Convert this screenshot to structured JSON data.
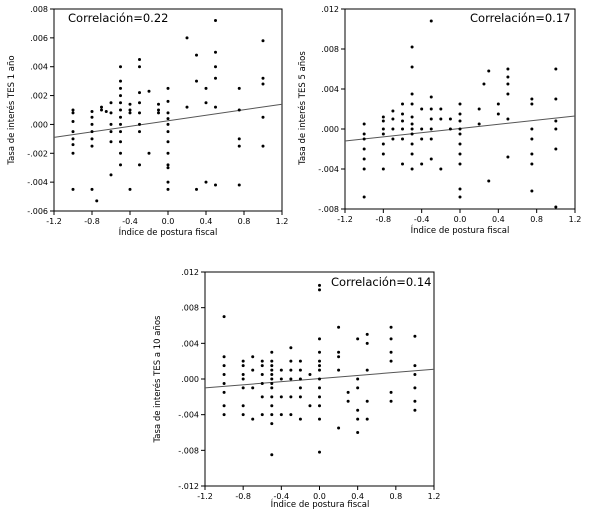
{
  "chart_data": [
    {
      "type": "scatter",
      "annotation": "Correlación=0.22",
      "xlabel": "Índice de postura fiscal",
      "ylabel": "Tasa de interés TES 1 año",
      "xlim": [
        -1.2,
        1.2
      ],
      "ylim": [
        -0.006,
        0.008
      ],
      "xticks": [
        "-1.2",
        "-0.8",
        "-0.4",
        "0.0",
        "0.4",
        "0.8",
        "1.2"
      ],
      "yticks": [
        ".008",
        ".006",
        ".004",
        ".002",
        ".000",
        "-.002",
        "-.004",
        "-.006"
      ],
      "fit_line": {
        "x": [
          -1.2,
          1.2
        ],
        "y": [
          -0.0009,
          0.0014
        ]
      },
      "grid": false,
      "points": [
        [
          -1.0,
          -0.0045
        ],
        [
          -1.0,
          -0.002
        ],
        [
          -1.0,
          -0.0014
        ],
        [
          -1.0,
          -0.001
        ],
        [
          -1.0,
          -0.0005
        ],
        [
          -1.0,
          0.0002
        ],
        [
          -1.0,
          0.0008
        ],
        [
          -1.0,
          0.001
        ],
        [
          -0.8,
          -0.0045
        ],
        [
          -0.8,
          -0.0015
        ],
        [
          -0.8,
          -0.001
        ],
        [
          -0.8,
          -0.0005
        ],
        [
          -0.8,
          0.0
        ],
        [
          -0.8,
          0.0005
        ],
        [
          -0.8,
          0.0009
        ],
        [
          -0.75,
          -0.0053
        ],
        [
          -0.7,
          0.001
        ],
        [
          -0.7,
          0.0012
        ],
        [
          -0.65,
          0.0009
        ],
        [
          -0.6,
          -0.0035
        ],
        [
          -0.6,
          -0.0012
        ],
        [
          -0.6,
          -0.0005
        ],
        [
          -0.6,
          0.0
        ],
        [
          -0.6,
          0.0008
        ],
        [
          -0.6,
          0.0015
        ],
        [
          -0.5,
          -0.0028
        ],
        [
          -0.5,
          -0.002
        ],
        [
          -0.5,
          -0.0012
        ],
        [
          -0.5,
          -0.0005
        ],
        [
          -0.5,
          0.0
        ],
        [
          -0.5,
          0.0005
        ],
        [
          -0.5,
          0.001
        ],
        [
          -0.5,
          0.0015
        ],
        [
          -0.5,
          0.002
        ],
        [
          -0.5,
          0.0025
        ],
        [
          -0.5,
          0.003
        ],
        [
          -0.5,
          0.004
        ],
        [
          -0.4,
          -0.0045
        ],
        [
          -0.4,
          0.0008
        ],
        [
          -0.4,
          0.001
        ],
        [
          -0.4,
          0.0014
        ],
        [
          -0.3,
          -0.0028
        ],
        [
          -0.3,
          -0.0005
        ],
        [
          -0.3,
          0.0
        ],
        [
          -0.3,
          0.0008
        ],
        [
          -0.3,
          0.0015
        ],
        [
          -0.3,
          0.0022
        ],
        [
          -0.3,
          0.004
        ],
        [
          -0.3,
          0.0045
        ],
        [
          -0.2,
          -0.002
        ],
        [
          -0.2,
          0.0023
        ],
        [
          -0.1,
          0.0008
        ],
        [
          -0.1,
          0.001
        ],
        [
          -0.1,
          0.0014
        ],
        [
          0.0,
          -0.0045
        ],
        [
          0.0,
          -0.004
        ],
        [
          0.0,
          -0.003
        ],
        [
          0.0,
          -0.0028
        ],
        [
          0.0,
          -0.002
        ],
        [
          0.0,
          -0.0012
        ],
        [
          0.0,
          -0.0005
        ],
        [
          0.0,
          0.0
        ],
        [
          0.0,
          0.0004
        ],
        [
          0.0,
          0.0008
        ],
        [
          0.0,
          0.0016
        ],
        [
          0.0,
          0.0025
        ],
        [
          0.2,
          0.0012
        ],
        [
          0.2,
          0.006
        ],
        [
          0.3,
          -0.0045
        ],
        [
          0.3,
          0.003
        ],
        [
          0.3,
          0.0048
        ],
        [
          0.4,
          -0.004
        ],
        [
          0.4,
          0.0015
        ],
        [
          0.4,
          0.0025
        ],
        [
          0.5,
          -0.0042
        ],
        [
          0.5,
          0.0012
        ],
        [
          0.5,
          0.0032
        ],
        [
          0.5,
          0.004
        ],
        [
          0.5,
          0.005
        ],
        [
          0.5,
          0.0072
        ],
        [
          0.75,
          -0.0042
        ],
        [
          0.75,
          -0.0015
        ],
        [
          0.75,
          -0.001
        ],
        [
          0.75,
          0.001
        ],
        [
          0.75,
          0.0025
        ],
        [
          1.0,
          -0.0015
        ],
        [
          1.0,
          0.0005
        ],
        [
          1.0,
          0.0028
        ],
        [
          1.0,
          0.0032
        ],
        [
          1.0,
          0.0058
        ]
      ]
    },
    {
      "type": "scatter",
      "annotation": "Correlación=0.17",
      "xlabel": "Índice de postura fiscal",
      "ylabel": "Tasa de interés TES 5 años",
      "xlim": [
        -1.2,
        1.2
      ],
      "ylim": [
        -0.008,
        0.012
      ],
      "xticks": [
        "-1.2",
        "-0.8",
        "-0.4",
        "0.0",
        "0.4",
        "0.8",
        "1.2"
      ],
      "yticks": [
        ".012",
        ".008",
        ".004",
        ".000",
        "-.004",
        "-.008"
      ],
      "fit_line": {
        "x": [
          -1.2,
          1.2
        ],
        "y": [
          -0.0012,
          0.0013
        ]
      },
      "grid": false,
      "points": [
        [
          -1.0,
          -0.0068
        ],
        [
          -1.0,
          -0.004
        ],
        [
          -1.0,
          -0.003
        ],
        [
          -1.0,
          -0.002
        ],
        [
          -1.0,
          -0.001
        ],
        [
          -1.0,
          -0.0005
        ],
        [
          -1.0,
          0.0005
        ],
        [
          -0.8,
          -0.004
        ],
        [
          -0.8,
          -0.0025
        ],
        [
          -0.8,
          -0.0015
        ],
        [
          -0.8,
          -0.0005
        ],
        [
          -0.8,
          0.0
        ],
        [
          -0.8,
          0.0008
        ],
        [
          -0.8,
          0.0012
        ],
        [
          -0.7,
          -0.001
        ],
        [
          -0.7,
          0.0
        ],
        [
          -0.7,
          0.001
        ],
        [
          -0.7,
          0.0018
        ],
        [
          -0.6,
          -0.0035
        ],
        [
          -0.6,
          -0.001
        ],
        [
          -0.6,
          0.0
        ],
        [
          -0.6,
          0.0008
        ],
        [
          -0.6,
          0.0015
        ],
        [
          -0.6,
          0.0025
        ],
        [
          -0.5,
          -0.004
        ],
        [
          -0.5,
          -0.0025
        ],
        [
          -0.5,
          -0.0015
        ],
        [
          -0.5,
          -0.0005
        ],
        [
          -0.5,
          0.0
        ],
        [
          -0.5,
          0.0005
        ],
        [
          -0.5,
          0.0012
        ],
        [
          -0.5,
          0.0025
        ],
        [
          -0.5,
          0.0035
        ],
        [
          -0.5,
          0.0062
        ],
        [
          -0.5,
          0.0082
        ],
        [
          -0.4,
          -0.0035
        ],
        [
          -0.4,
          -0.001
        ],
        [
          -0.4,
          0.0
        ],
        [
          -0.4,
          0.002
        ],
        [
          -0.3,
          -0.003
        ],
        [
          -0.3,
          -0.001
        ],
        [
          -0.3,
          0.0
        ],
        [
          -0.3,
          0.001
        ],
        [
          -0.3,
          0.002
        ],
        [
          -0.3,
          0.0032
        ],
        [
          -0.3,
          0.0108
        ],
        [
          -0.2,
          -0.004
        ],
        [
          -0.2,
          0.001
        ],
        [
          -0.2,
          0.002
        ],
        [
          -0.1,
          0.0
        ],
        [
          -0.1,
          0.001
        ],
        [
          0.0,
          -0.0068
        ],
        [
          0.0,
          -0.006
        ],
        [
          0.0,
          -0.0035
        ],
        [
          0.0,
          -0.0025
        ],
        [
          0.0,
          -0.0015
        ],
        [
          0.0,
          -0.0005
        ],
        [
          0.0,
          0.0
        ],
        [
          0.0,
          0.0008
        ],
        [
          0.0,
          0.0015
        ],
        [
          0.0,
          0.0025
        ],
        [
          0.2,
          0.0005
        ],
        [
          0.2,
          0.002
        ],
        [
          0.25,
          0.0045
        ],
        [
          0.3,
          -0.0052
        ],
        [
          0.3,
          0.0058
        ],
        [
          0.4,
          0.0015
        ],
        [
          0.4,
          0.0025
        ],
        [
          0.5,
          -0.0028
        ],
        [
          0.5,
          0.001
        ],
        [
          0.5,
          0.0035
        ],
        [
          0.5,
          0.0045
        ],
        [
          0.5,
          0.0052
        ],
        [
          0.5,
          0.006
        ],
        [
          0.75,
          -0.0062
        ],
        [
          0.75,
          -0.0035
        ],
        [
          0.75,
          -0.0025
        ],
        [
          0.75,
          -0.001
        ],
        [
          0.75,
          0.0
        ],
        [
          0.75,
          0.0025
        ],
        [
          0.75,
          0.003
        ],
        [
          1.0,
          -0.0078
        ],
        [
          1.0,
          -0.002
        ],
        [
          1.0,
          0.0
        ],
        [
          1.0,
          0.0008
        ],
        [
          1.0,
          0.003
        ],
        [
          1.0,
          0.006
        ]
      ]
    },
    {
      "type": "scatter",
      "annotation": "Correlación=0.14",
      "xlabel": "Índice de postura fiscal",
      "ylabel": "Tasa de interés TES a 10 años",
      "xlim": [
        -1.2,
        1.2
      ],
      "ylim": [
        -0.012,
        0.012
      ],
      "xticks": [
        "-1.2",
        "-0.8",
        "-0.4",
        "0.0",
        "0.4",
        "0.8",
        "1.2"
      ],
      "yticks": [
        ".012",
        ".008",
        ".004",
        ".000",
        "-.004",
        "-.008",
        "-.012"
      ],
      "fit_line": {
        "x": [
          -1.2,
          1.2
        ],
        "y": [
          -0.001,
          0.0011
        ]
      },
      "grid": false,
      "points": [
        [
          -1.0,
          -0.004
        ],
        [
          -1.0,
          -0.003
        ],
        [
          -1.0,
          -0.0015
        ],
        [
          -1.0,
          -0.0005
        ],
        [
          -1.0,
          0.0005
        ],
        [
          -1.0,
          0.0015
        ],
        [
          -1.0,
          0.0025
        ],
        [
          -1.0,
          0.007
        ],
        [
          -0.8,
          -0.004
        ],
        [
          -0.8,
          -0.003
        ],
        [
          -0.8,
          -0.001
        ],
        [
          -0.8,
          0.0
        ],
        [
          -0.8,
          0.0005
        ],
        [
          -0.8,
          0.0015
        ],
        [
          -0.8,
          0.002
        ],
        [
          -0.7,
          -0.0045
        ],
        [
          -0.7,
          -0.001
        ],
        [
          -0.7,
          0.001
        ],
        [
          -0.7,
          0.0025
        ],
        [
          -0.6,
          -0.004
        ],
        [
          -0.6,
          -0.002
        ],
        [
          -0.6,
          -0.0005
        ],
        [
          -0.6,
          0.0005
        ],
        [
          -0.6,
          0.0015
        ],
        [
          -0.6,
          0.002
        ],
        [
          -0.5,
          -0.0085
        ],
        [
          -0.5,
          -0.005
        ],
        [
          -0.5,
          -0.004
        ],
        [
          -0.5,
          -0.003
        ],
        [
          -0.5,
          -0.002
        ],
        [
          -0.5,
          -0.001
        ],
        [
          -0.5,
          -0.0005
        ],
        [
          -0.5,
          0.0
        ],
        [
          -0.5,
          0.0005
        ],
        [
          -0.5,
          0.001
        ],
        [
          -0.5,
          0.0015
        ],
        [
          -0.5,
          0.002
        ],
        [
          -0.5,
          0.003
        ],
        [
          -0.4,
          -0.004
        ],
        [
          -0.4,
          -0.002
        ],
        [
          -0.4,
          0.0
        ],
        [
          -0.4,
          0.001
        ],
        [
          -0.3,
          -0.004
        ],
        [
          -0.3,
          -0.002
        ],
        [
          -0.3,
          0.0
        ],
        [
          -0.3,
          0.001
        ],
        [
          -0.3,
          0.002
        ],
        [
          -0.3,
          0.0035
        ],
        [
          -0.2,
          -0.0045
        ],
        [
          -0.2,
          -0.002
        ],
        [
          -0.2,
          -0.001
        ],
        [
          -0.2,
          0.0
        ],
        [
          -0.2,
          0.001
        ],
        [
          -0.2,
          0.002
        ],
        [
          -0.1,
          -0.003
        ],
        [
          -0.1,
          0.0005
        ],
        [
          0.0,
          -0.0082
        ],
        [
          0.0,
          -0.0045
        ],
        [
          0.0,
          -0.003
        ],
        [
          0.0,
          -0.002
        ],
        [
          0.0,
          -0.001
        ],
        [
          0.0,
          0.0
        ],
        [
          0.0,
          0.001
        ],
        [
          0.0,
          0.0015
        ],
        [
          0.0,
          0.002
        ],
        [
          0.0,
          0.003
        ],
        [
          0.0,
          0.0045
        ],
        [
          0.0,
          0.01
        ],
        [
          0.0,
          0.0105
        ],
        [
          0.2,
          -0.0055
        ],
        [
          0.2,
          0.001
        ],
        [
          0.2,
          0.0025
        ],
        [
          0.2,
          0.003
        ],
        [
          0.2,
          0.0058
        ],
        [
          0.3,
          -0.0025
        ],
        [
          0.3,
          -0.0015
        ],
        [
          0.4,
          -0.006
        ],
        [
          0.4,
          -0.0045
        ],
        [
          0.4,
          -0.0035
        ],
        [
          0.4,
          -0.001
        ],
        [
          0.4,
          0.0
        ],
        [
          0.4,
          0.0045
        ],
        [
          0.5,
          -0.0045
        ],
        [
          0.5,
          -0.0025
        ],
        [
          0.5,
          0.001
        ],
        [
          0.5,
          0.004
        ],
        [
          0.5,
          0.005
        ],
        [
          0.75,
          -0.0025
        ],
        [
          0.75,
          -0.0015
        ],
        [
          0.75,
          0.002
        ],
        [
          0.75,
          0.003
        ],
        [
          0.75,
          0.0045
        ],
        [
          0.75,
          0.0058
        ],
        [
          1.0,
          -0.0035
        ],
        [
          1.0,
          -0.0025
        ],
        [
          1.0,
          -0.001
        ],
        [
          1.0,
          0.0005
        ],
        [
          1.0,
          0.0015
        ],
        [
          1.0,
          0.0048
        ]
      ]
    }
  ]
}
